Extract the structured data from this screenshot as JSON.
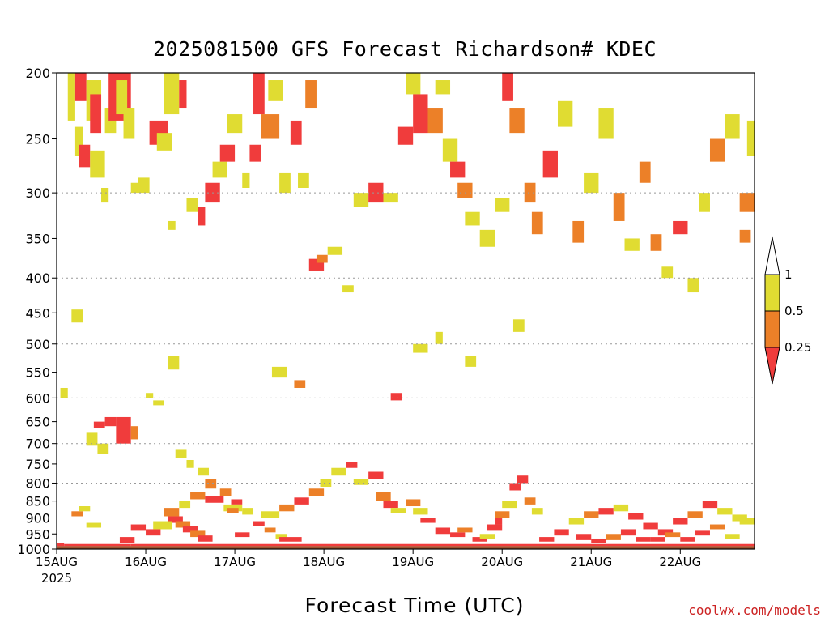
{
  "chart_data": {
    "type": "heatmap",
    "title": "2025081500 GFS Forecast Richardson# KDEC",
    "xlabel": "Forecast Time (UTC)",
    "ylabel": "",
    "footer": "coolwx.com/models",
    "x_range_hours": [
      0,
      188
    ],
    "x_ticks": [
      {
        "label": "15AUG",
        "sub": "2025",
        "hour": 0
      },
      {
        "label": "16AUG",
        "sub": "",
        "hour": 24
      },
      {
        "label": "17AUG",
        "sub": "",
        "hour": 48
      },
      {
        "label": "18AUG",
        "sub": "",
        "hour": 72
      },
      {
        "label": "19AUG",
        "sub": "",
        "hour": 96
      },
      {
        "label": "20AUG",
        "sub": "",
        "hour": 120
      },
      {
        "label": "21AUG",
        "sub": "",
        "hour": 144
      },
      {
        "label": "22AUG",
        "sub": "",
        "hour": 168
      }
    ],
    "y_axis": {
      "scale": "log-pressure",
      "range_hPa": [
        1000,
        200
      ],
      "ticks": [
        200,
        250,
        300,
        350,
        400,
        450,
        500,
        550,
        600,
        650,
        700,
        750,
        800,
        850,
        900,
        950,
        1000
      ],
      "gridlines": [
        300,
        400,
        500,
        600,
        700,
        800,
        900
      ]
    },
    "ground_level_hPa": 990,
    "colorbar": {
      "labels": [
        "1",
        "0.5",
        "0.25"
      ],
      "levels": [
        {
          "range": "< 0.25",
          "color": "#f03c3c"
        },
        {
          "range": "0.25-0.5",
          "color": "#ec8028"
        },
        {
          "range": "0.5-1",
          "color": "#e0dc32"
        },
        {
          "range": "> 1",
          "color": "#ffffff"
        }
      ]
    },
    "colors": {
      "lt025": "#f03c3c",
      "c025_05": "#ec8028",
      "c05_1": "#e0dc32",
      "ground": "#a0522d"
    },
    "cells": [
      [
        3,
        5,
        200,
        235,
        "y"
      ],
      [
        5,
        8,
        200,
        220,
        "r"
      ],
      [
        8,
        12,
        205,
        235,
        "y"
      ],
      [
        5,
        7,
        240,
        265,
        "y"
      ],
      [
        9,
        12,
        215,
        245,
        "r"
      ],
      [
        6,
        9,
        255,
        275,
        "r"
      ],
      [
        9,
        13,
        260,
        285,
        "y"
      ],
      [
        12,
        14,
        295,
        310,
        "y"
      ],
      [
        13,
        16,
        225,
        245,
        "y"
      ],
      [
        14,
        20,
        200,
        235,
        "r"
      ],
      [
        16,
        19,
        205,
        230,
        "y"
      ],
      [
        18,
        21,
        225,
        250,
        "y"
      ],
      [
        20,
        22,
        290,
        300,
        "y"
      ],
      [
        22,
        25,
        285,
        300,
        "y"
      ],
      [
        25,
        30,
        235,
        255,
        "r"
      ],
      [
        27,
        31,
        245,
        260,
        "y"
      ],
      [
        30,
        32,
        330,
        340,
        "y"
      ],
      [
        29,
        33,
        200,
        230,
        "y"
      ],
      [
        33,
        35,
        205,
        225,
        "r"
      ],
      [
        35,
        38,
        305,
        320,
        "y"
      ],
      [
        38,
        40,
        315,
        335,
        "r"
      ],
      [
        40,
        44,
        290,
        310,
        "r"
      ],
      [
        42,
        46,
        270,
        285,
        "y"
      ],
      [
        44,
        48,
        255,
        270,
        "r"
      ],
      [
        46,
        50,
        230,
        245,
        "y"
      ],
      [
        50,
        52,
        280,
        295,
        "y"
      ],
      [
        52,
        55,
        255,
        270,
        "r"
      ],
      [
        53,
        56,
        200,
        230,
        "r"
      ],
      [
        55,
        60,
        230,
        250,
        "o"
      ],
      [
        57,
        61,
        205,
        220,
        "y"
      ],
      [
        60,
        63,
        280,
        300,
        "y"
      ],
      [
        63,
        66,
        235,
        255,
        "r"
      ],
      [
        65,
        68,
        280,
        295,
        "y"
      ],
      [
        67,
        70,
        205,
        225,
        "o"
      ],
      [
        68,
        72,
        375,
        390,
        "r"
      ],
      [
        70,
        73,
        370,
        380,
        "o"
      ],
      [
        73,
        77,
        360,
        370,
        "y"
      ],
      [
        77,
        80,
        410,
        420,
        "y"
      ],
      [
        80,
        84,
        300,
        315,
        "y"
      ],
      [
        84,
        88,
        290,
        310,
        "r"
      ],
      [
        88,
        92,
        300,
        310,
        "y"
      ],
      [
        92,
        96,
        240,
        255,
        "r"
      ],
      [
        94,
        98,
        200,
        215,
        "y"
      ],
      [
        96,
        100,
        215,
        245,
        "r"
      ],
      [
        100,
        104,
        225,
        245,
        "o"
      ],
      [
        102,
        106,
        205,
        215,
        "y"
      ],
      [
        104,
        108,
        250,
        270,
        "y"
      ],
      [
        106,
        110,
        270,
        285,
        "r"
      ],
      [
        108,
        112,
        290,
        305,
        "o"
      ],
      [
        110,
        114,
        320,
        335,
        "y"
      ],
      [
        114,
        118,
        340,
        360,
        "y"
      ],
      [
        118,
        122,
        305,
        320,
        "y"
      ],
      [
        120,
        123,
        200,
        220,
        "r"
      ],
      [
        122,
        126,
        225,
        245,
        "o"
      ],
      [
        126,
        129,
        290,
        310,
        "o"
      ],
      [
        128,
        131,
        320,
        345,
        "o"
      ],
      [
        131,
        135,
        260,
        285,
        "r"
      ],
      [
        135,
        139,
        220,
        240,
        "y"
      ],
      [
        139,
        142,
        330,
        355,
        "o"
      ],
      [
        142,
        146,
        280,
        300,
        "y"
      ],
      [
        146,
        150,
        225,
        250,
        "y"
      ],
      [
        150,
        153,
        300,
        330,
        "o"
      ],
      [
        153,
        157,
        350,
        365,
        "y"
      ],
      [
        157,
        160,
        270,
        290,
        "o"
      ],
      [
        160,
        163,
        345,
        365,
        "o"
      ],
      [
        163,
        166,
        385,
        400,
        "y"
      ],
      [
        166,
        170,
        330,
        345,
        "r"
      ],
      [
        170,
        173,
        400,
        420,
        "y"
      ],
      [
        173,
        176,
        300,
        320,
        "y"
      ],
      [
        176,
        180,
        250,
        270,
        "o"
      ],
      [
        180,
        184,
        230,
        250,
        "y"
      ],
      [
        184,
        188,
        300,
        320,
        "o"
      ],
      [
        186,
        188,
        235,
        265,
        "y"
      ],
      [
        184,
        187,
        340,
        355,
        "o"
      ],
      [
        10,
        13,
        650,
        665,
        "r"
      ],
      [
        13,
        16,
        640,
        660,
        "r"
      ],
      [
        16,
        20,
        640,
        700,
        "r"
      ],
      [
        20,
        22,
        660,
        690,
        "o"
      ],
      [
        8,
        11,
        675,
        705,
        "y"
      ],
      [
        11,
        14,
        700,
        725,
        "y"
      ],
      [
        24,
        26,
        590,
        600,
        "y"
      ],
      [
        26,
        29,
        605,
        615,
        "y"
      ],
      [
        30,
        33,
        520,
        545,
        "y"
      ],
      [
        32,
        35,
        715,
        735,
        "y"
      ],
      [
        35,
        37,
        740,
        760,
        "y"
      ],
      [
        38,
        41,
        760,
        780,
        "y"
      ],
      [
        40,
        43,
        790,
        815,
        "o"
      ],
      [
        44,
        47,
        815,
        835,
        "o"
      ],
      [
        47,
        50,
        845,
        860,
        "r"
      ],
      [
        50,
        53,
        870,
        890,
        "y"
      ],
      [
        53,
        56,
        910,
        925,
        "r"
      ],
      [
        56,
        59,
        930,
        945,
        "o"
      ],
      [
        59,
        62,
        950,
        965,
        "y"
      ],
      [
        30,
        34,
        895,
        915,
        "r"
      ],
      [
        32,
        36,
        910,
        930,
        "o"
      ],
      [
        34,
        38,
        925,
        945,
        "r"
      ],
      [
        36,
        40,
        940,
        960,
        "o"
      ],
      [
        38,
        42,
        955,
        975,
        "r"
      ],
      [
        20,
        24,
        920,
        940,
        "r"
      ],
      [
        24,
        28,
        935,
        955,
        "r"
      ],
      [
        17,
        21,
        960,
        980,
        "r"
      ],
      [
        26,
        31,
        910,
        935,
        "y"
      ],
      [
        29,
        33,
        870,
        895,
        "o"
      ],
      [
        33,
        36,
        850,
        870,
        "y"
      ],
      [
        36,
        40,
        825,
        845,
        "o"
      ],
      [
        40,
        45,
        835,
        855,
        "r"
      ],
      [
        45,
        50,
        860,
        880,
        "y"
      ],
      [
        55,
        60,
        880,
        900,
        "y"
      ],
      [
        60,
        64,
        860,
        880,
        "o"
      ],
      [
        64,
        68,
        840,
        860,
        "r"
      ],
      [
        68,
        72,
        815,
        835,
        "o"
      ],
      [
        71,
        74,
        790,
        810,
        "y"
      ],
      [
        74,
        78,
        760,
        780,
        "y"
      ],
      [
        78,
        81,
        745,
        760,
        "r"
      ],
      [
        80,
        84,
        790,
        805,
        "y"
      ],
      [
        84,
        88,
        770,
        790,
        "r"
      ],
      [
        86,
        90,
        825,
        850,
        "o"
      ],
      [
        88,
        92,
        850,
        870,
        "r"
      ],
      [
        90,
        94,
        870,
        885,
        "y"
      ],
      [
        94,
        98,
        845,
        865,
        "o"
      ],
      [
        96,
        100,
        870,
        890,
        "y"
      ],
      [
        98,
        102,
        900,
        915,
        "r"
      ],
      [
        102,
        106,
        930,
        950,
        "r"
      ],
      [
        106,
        110,
        945,
        960,
        "r"
      ],
      [
        108,
        112,
        930,
        945,
        "o"
      ],
      [
        112,
        116,
        960,
        975,
        "r"
      ],
      [
        116,
        120,
        920,
        940,
        "r"
      ],
      [
        118,
        122,
        880,
        900,
        "o"
      ],
      [
        120,
        124,
        850,
        870,
        "y"
      ],
      [
        122,
        125,
        800,
        820,
        "r"
      ],
      [
        124,
        127,
        780,
        800,
        "r"
      ],
      [
        126,
        129,
        840,
        860,
        "o"
      ],
      [
        128,
        131,
        870,
        890,
        "y"
      ],
      [
        118,
        120,
        900,
        920,
        "r"
      ],
      [
        114,
        118,
        950,
        965,
        "y"
      ],
      [
        130,
        134,
        960,
        975,
        "r"
      ],
      [
        134,
        138,
        935,
        955,
        "r"
      ],
      [
        138,
        142,
        900,
        920,
        "y"
      ],
      [
        142,
        146,
        880,
        900,
        "o"
      ],
      [
        146,
        150,
        870,
        890,
        "r"
      ],
      [
        150,
        154,
        860,
        880,
        "y"
      ],
      [
        154,
        158,
        885,
        905,
        "r"
      ],
      [
        158,
        162,
        915,
        935,
        "r"
      ],
      [
        162,
        166,
        935,
        955,
        "r"
      ],
      [
        166,
        170,
        900,
        920,
        "r"
      ],
      [
        170,
        174,
        880,
        900,
        "o"
      ],
      [
        174,
        178,
        850,
        870,
        "r"
      ],
      [
        178,
        182,
        870,
        890,
        "y"
      ],
      [
        182,
        186,
        890,
        910,
        "y"
      ],
      [
        184,
        188,
        900,
        920,
        "y"
      ],
      [
        160,
        164,
        960,
        975,
        "r"
      ],
      [
        164,
        168,
        945,
        960,
        "o"
      ],
      [
        168,
        172,
        960,
        975,
        "r"
      ],
      [
        172,
        176,
        940,
        955,
        "r"
      ],
      [
        176,
        180,
        920,
        935,
        "o"
      ],
      [
        180,
        184,
        950,
        965,
        "y"
      ],
      [
        140,
        144,
        950,
        970,
        "r"
      ],
      [
        144,
        148,
        965,
        980,
        "r"
      ],
      [
        148,
        152,
        950,
        970,
        "o"
      ],
      [
        152,
        156,
        935,
        955,
        "r"
      ],
      [
        156,
        160,
        960,
        975,
        "r"
      ],
      [
        102,
        104,
        480,
        500,
        "y"
      ],
      [
        96,
        100,
        500,
        515,
        "y"
      ],
      [
        58,
        62,
        540,
        560,
        "y"
      ],
      [
        64,
        67,
        565,
        580,
        "o"
      ],
      [
        90,
        93,
        590,
        605,
        "r"
      ],
      [
        110,
        113,
        520,
        540,
        "y"
      ],
      [
        123,
        126,
        460,
        480,
        "y"
      ],
      [
        4,
        7,
        445,
        465,
        "y"
      ],
      [
        1,
        3,
        580,
        600,
        "y"
      ],
      [
        46,
        49,
        870,
        885,
        "o"
      ],
      [
        60,
        66,
        960,
        975,
        "r"
      ],
      [
        48,
        52,
        945,
        960,
        "r"
      ],
      [
        8,
        12,
        915,
        930,
        "y"
      ],
      [
        4,
        7,
        880,
        895,
        "o"
      ],
      [
        6,
        9,
        865,
        880,
        "y"
      ],
      [
        0,
        2,
        980,
        990,
        "r"
      ],
      [
        2,
        20,
        983,
        990,
        "r"
      ],
      [
        20,
        190,
        983,
        990,
        "r"
      ]
    ]
  }
}
